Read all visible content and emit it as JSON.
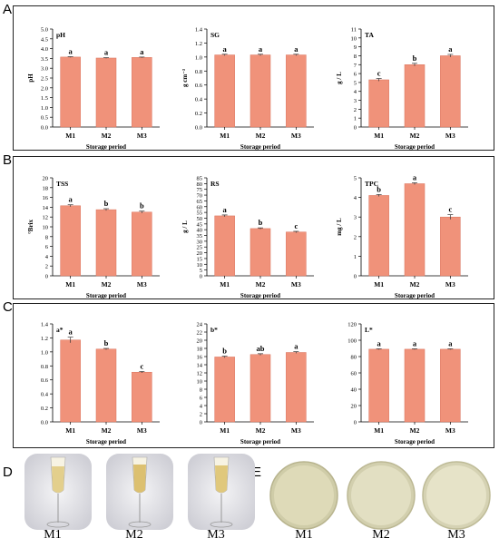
{
  "panels": {
    "A": "A",
    "B": "B",
    "C": "C",
    "D": "D",
    "E": "E"
  },
  "colors": {
    "bar": "#f0927a",
    "bar_stroke": "#d9735d",
    "wine": "#e9d8a0",
    "dish_fill": "#dcd8b8"
  },
  "chart_data": [
    {
      "panel": "A",
      "type": "bar",
      "title": "pH",
      "ylabel": "pH",
      "xlabel": "Storage period",
      "categories": [
        "M1",
        "M2",
        "M3"
      ],
      "values": [
        3.57,
        3.52,
        3.55
      ],
      "errors": [
        0.02,
        0.02,
        0.02
      ],
      "letters": [
        "a",
        "a",
        "a"
      ],
      "ylim": [
        0,
        5.0
      ],
      "yticks": [
        "0.0",
        "0.5",
        "1.0",
        "1.5",
        "2.0",
        "2.5",
        "3.0",
        "3.5",
        "4.0",
        "4.5",
        "5.0"
      ]
    },
    {
      "panel": "A",
      "type": "bar",
      "title": "SG",
      "ylabel": "g cm⁻³",
      "xlabel": "Storage period",
      "categories": [
        "M1",
        "M2",
        "M3"
      ],
      "values": [
        1.03,
        1.03,
        1.03
      ],
      "errors": [
        0.01,
        0.01,
        0.01
      ],
      "letters": [
        "a",
        "a",
        "a"
      ],
      "ylim": [
        0,
        1.4
      ],
      "yticks": [
        "0.0",
        "0.2",
        "0.4",
        "0.6",
        "0.8",
        "1.0",
        "1.2",
        "1.4"
      ]
    },
    {
      "panel": "A",
      "type": "bar",
      "title": "TA",
      "ylabel": "g / L",
      "xlabel": "Storage period",
      "categories": [
        "M1",
        "M2",
        "M3"
      ],
      "values": [
        5.3,
        7.0,
        8.0
      ],
      "errors": [
        0.15,
        0.15,
        0.15
      ],
      "letters": [
        "c",
        "b",
        "a"
      ],
      "ylim": [
        0,
        11
      ],
      "yticks": [
        "0",
        "1",
        "2",
        "3",
        "4",
        "5",
        "6",
        "7",
        "8",
        "9",
        "10",
        "11"
      ]
    },
    {
      "panel": "B",
      "type": "bar",
      "title": "TSS",
      "ylabel": "°Brix",
      "xlabel": "Storage period",
      "categories": [
        "M1",
        "M2",
        "M3"
      ],
      "values": [
        14.3,
        13.5,
        13.0
      ],
      "errors": [
        0.2,
        0.2,
        0.2
      ],
      "letters": [
        "a",
        "b",
        "b"
      ],
      "ylim": [
        0,
        20
      ],
      "yticks": [
        "0",
        "2",
        "4",
        "6",
        "8",
        "10",
        "12",
        "14",
        "16",
        "18",
        "20"
      ]
    },
    {
      "panel": "B",
      "type": "bar",
      "title": "RS",
      "ylabel": "g / L",
      "xlabel": "Storage period",
      "categories": [
        "M1",
        "M2",
        "M3"
      ],
      "values": [
        52,
        41,
        38
      ],
      "errors": [
        0.8,
        0.6,
        0.6
      ],
      "letters": [
        "a",
        "b",
        "c"
      ],
      "ylim": [
        0,
        85
      ],
      "yticks": [
        "0",
        "5",
        "10",
        "15",
        "20",
        "25",
        "30",
        "35",
        "40",
        "45",
        "50",
        "55",
        "60",
        "65",
        "70",
        "75",
        "80",
        "85"
      ]
    },
    {
      "panel": "B",
      "type": "bar",
      "title": "TPC",
      "ylabel": "mg / L",
      "xlabel": "Storage period",
      "categories": [
        "M1",
        "M2",
        "M3"
      ],
      "values": [
        4.1,
        4.7,
        3.0
      ],
      "errors": [
        0.05,
        0.05,
        0.12
      ],
      "letters": [
        "b",
        "a",
        "c"
      ],
      "ylim": [
        0,
        5
      ],
      "yticks": [
        "0",
        "1",
        "2",
        "3",
        "4",
        "5"
      ]
    },
    {
      "panel": "C",
      "type": "bar",
      "title": "a*",
      "ylabel": "",
      "xlabel": "Storage period",
      "categories": [
        "M1",
        "M2",
        "M3"
      ],
      "values": [
        1.17,
        1.04,
        0.71
      ],
      "errors": [
        0.04,
        0.01,
        0.01
      ],
      "letters": [
        "a",
        "b",
        "c"
      ],
      "ylim": [
        0,
        1.4
      ],
      "yticks": [
        "0.0",
        "0.2",
        "0.4",
        "0.6",
        "0.8",
        "1.0",
        "1.2",
        "1.4"
      ]
    },
    {
      "panel": "C",
      "type": "bar",
      "title": "b*",
      "ylabel": "",
      "xlabel": "Storage period",
      "categories": [
        "M1",
        "M2",
        "M3"
      ],
      "values": [
        15.9,
        16.5,
        17.0
      ],
      "errors": [
        0.2,
        0.2,
        0.2
      ],
      "letters": [
        "b",
        "ab",
        "a"
      ],
      "ylim": [
        0,
        24
      ],
      "yticks": [
        "0",
        "2",
        "4",
        "6",
        "8",
        "10",
        "12",
        "14",
        "16",
        "18",
        "20",
        "22",
        "24"
      ]
    },
    {
      "panel": "C",
      "type": "bar",
      "title": "L*",
      "ylabel": "",
      "xlabel": "Storage period",
      "categories": [
        "M1",
        "M2",
        "M3"
      ],
      "values": [
        89,
        89,
        89
      ],
      "errors": [
        0.5,
        0.5,
        0.5
      ],
      "letters": [
        "a",
        "a",
        "a"
      ],
      "ylim": [
        0,
        120
      ],
      "yticks": [
        "0",
        "20",
        "40",
        "60",
        "80",
        "100",
        "120"
      ]
    }
  ],
  "photos_d": [
    "M1",
    "M2",
    "M3"
  ],
  "photos_e": [
    "M1",
    "M2",
    "M3"
  ]
}
